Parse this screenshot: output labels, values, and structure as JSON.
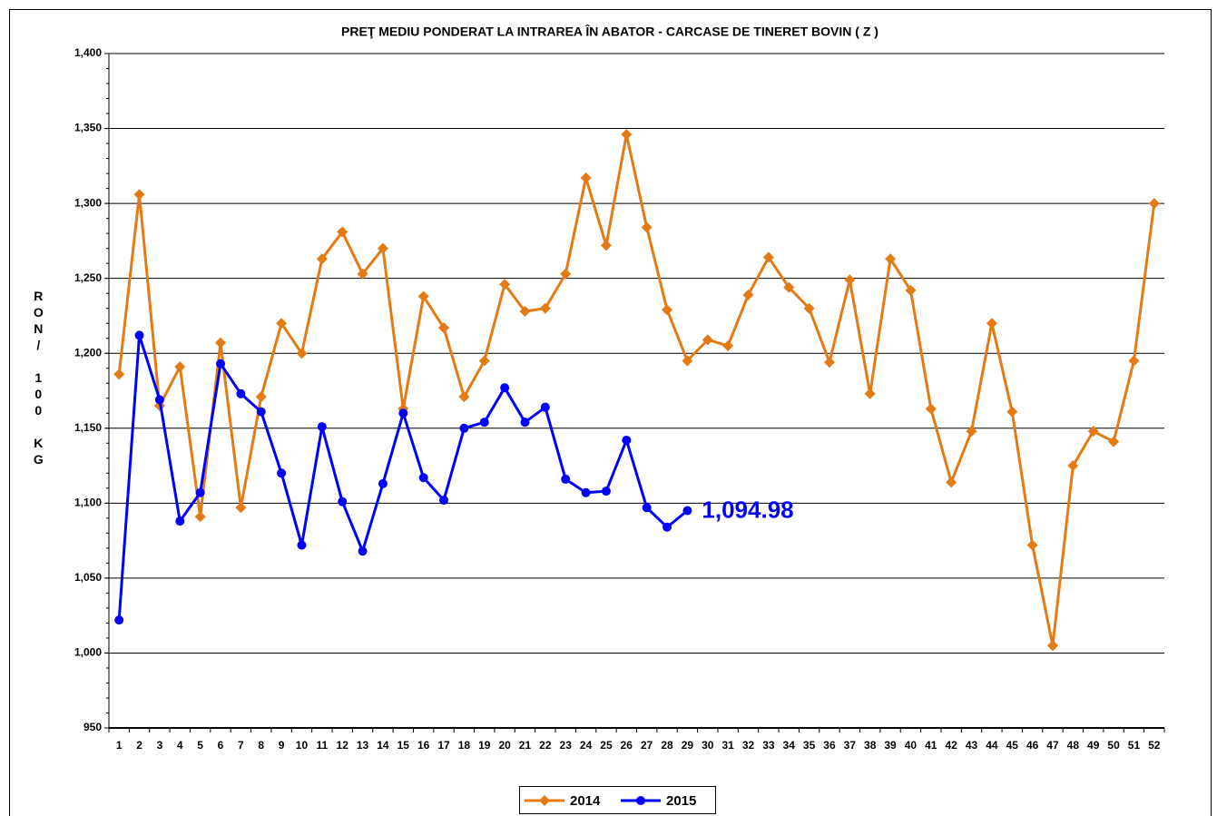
{
  "chart_data": {
    "type": "line",
    "title": "PREŢ MEDIU PONDERAT LA INTRAREA ÎN ABATOR - CARCASE DE TINERET BOVIN ( Z )",
    "y_label": "RON/ 100 KG",
    "categories": [
      "1",
      "2",
      "3",
      "4",
      "5",
      "6",
      "7",
      "8",
      "9",
      "10",
      "11",
      "12",
      "13",
      "14",
      "15",
      "16",
      "17",
      "18",
      "19",
      "20",
      "21",
      "22",
      "23",
      "24",
      "25",
      "26",
      "27",
      "28",
      "29",
      "30",
      "31",
      "32",
      "33",
      "34",
      "35",
      "36",
      "37",
      "38",
      "39",
      "40",
      "41",
      "42",
      "43",
      "44",
      "45",
      "46",
      "47",
      "48",
      "49",
      "50",
      "51",
      "52"
    ],
    "series": [
      {
        "name": "2014",
        "color": "#e47a14",
        "marker": "diamond",
        "values": [
          1186,
          1306,
          1165,
          1191,
          1091,
          1207,
          1097,
          1171,
          1220,
          1200,
          1263,
          1281,
          1253,
          1270,
          1163,
          1238,
          1217,
          1171,
          1195,
          1246,
          1228,
          1230,
          1253,
          1317,
          1272,
          1346,
          1284,
          1229,
          1195,
          1209,
          1205,
          1239,
          1264,
          1244,
          1230,
          1194,
          1249,
          1173,
          1263,
          1242,
          1163,
          1114,
          1148,
          1220,
          1161,
          1072,
          1005,
          1125,
          1148,
          1141,
          1195,
          1300
        ]
      },
      {
        "name": "2015",
        "color": "#0000ff",
        "marker": "circle",
        "values": [
          1022,
          1212,
          1169,
          1088,
          1107,
          1193,
          1173,
          1161,
          1120,
          1072,
          1151,
          1101,
          1068,
          1113,
          1160,
          1117,
          1102,
          1150,
          1154,
          1177,
          1154,
          1164,
          1116,
          1107,
          1108,
          1142,
          1097,
          1084,
          1094.98,
          null,
          null,
          null,
          null,
          null,
          null,
          null,
          null,
          null,
          null,
          null,
          null,
          null,
          null,
          null,
          null,
          null,
          null,
          null,
          null,
          null,
          null,
          null
        ],
        "value_labels": [
          null,
          null,
          null,
          null,
          null,
          null,
          null,
          null,
          null,
          null,
          null,
          null,
          null,
          null,
          null,
          null,
          null,
          null,
          null,
          null,
          null,
          null,
          null,
          null,
          null,
          null,
          null,
          null,
          "1,094.98",
          null,
          null,
          null,
          null,
          null,
          null,
          null,
          null,
          null,
          null,
          null,
          null,
          null,
          null,
          null,
          null,
          null,
          null,
          null,
          null,
          null,
          null,
          null
        ]
      }
    ],
    "ylim": [
      950,
      1400
    ],
    "yticks": [
      950,
      {
        "value": 1000,
        "label": "1,000"
      },
      {
        "value": 1050,
        "label": "1,050"
      },
      {
        "value": 1100,
        "label": "1,100"
      },
      {
        "value": 1150,
        "label": "1,150"
      },
      {
        "value": 1200,
        "label": "1,200"
      },
      {
        "value": 1250,
        "label": "1,250"
      },
      {
        "value": 1300,
        "label": "1,300"
      },
      {
        "value": 1350,
        "label": "1,350"
      },
      {
        "value": 1400,
        "label": "1,400"
      }
    ],
    "grid": true,
    "legend": "bottom"
  }
}
